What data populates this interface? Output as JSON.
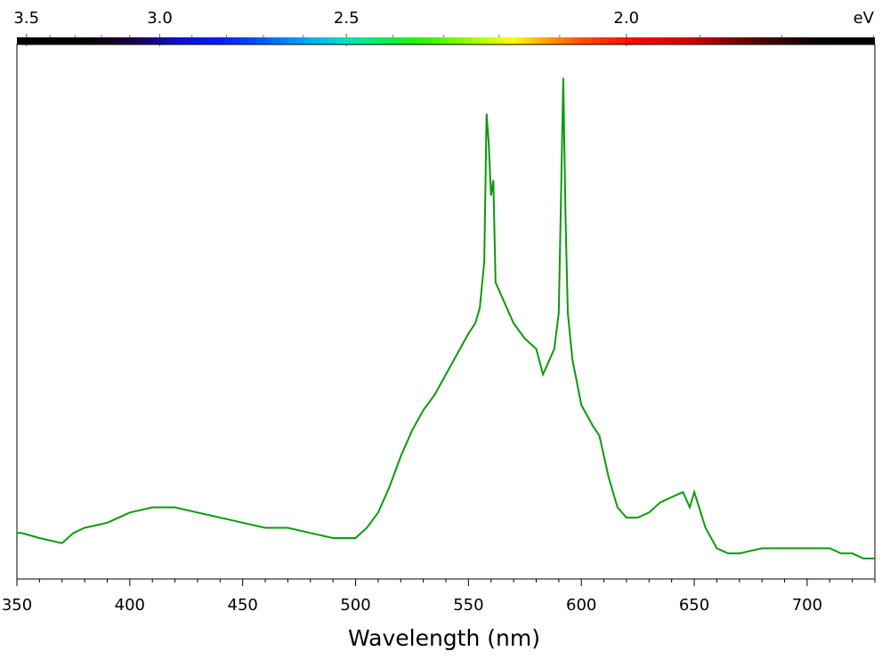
{
  "chart_data": {
    "type": "line",
    "xlabel": "Wavelength (nm)",
    "ylabel": "",
    "xlim": [
      350,
      730
    ],
    "ylim": [
      0,
      1
    ],
    "grid": false,
    "x_ticks": [
      350,
      400,
      450,
      500,
      550,
      600,
      650,
      700
    ],
    "top_axis": {
      "unit_label": "eV",
      "ticks": [
        "3.5",
        "3.0",
        "2.5",
        "2.0"
      ],
      "tick_values_ev": [
        3.5,
        3.0,
        2.5,
        2.0
      ],
      "colorbar": "visible spectrum"
    },
    "series": [
      {
        "name": "",
        "color": "#0a9b0a",
        "x": [
          350,
          352,
          360,
          370,
          375,
          380,
          390,
          400,
          410,
          420,
          430,
          440,
          450,
          460,
          470,
          480,
          490,
          495,
          500,
          505,
          510,
          515,
          520,
          525,
          530,
          535,
          540,
          545,
          550,
          553,
          555,
          557,
          558,
          559,
          560,
          561,
          562,
          565,
          570,
          575,
          580,
          583,
          585,
          588,
          590,
          591,
          592,
          593,
          594,
          596,
          600,
          605,
          608,
          612,
          616,
          620,
          625,
          630,
          635,
          640,
          645,
          648,
          650,
          655,
          660,
          665,
          670,
          680,
          690,
          700,
          710,
          715,
          720,
          725,
          730
        ],
        "y": [
          0.09,
          0.09,
          0.08,
          0.07,
          0.09,
          0.1,
          0.11,
          0.13,
          0.14,
          0.14,
          0.13,
          0.12,
          0.11,
          0.1,
          0.1,
          0.09,
          0.08,
          0.08,
          0.08,
          0.1,
          0.13,
          0.18,
          0.24,
          0.29,
          0.33,
          0.36,
          0.4,
          0.44,
          0.48,
          0.5,
          0.53,
          0.62,
          0.91,
          0.85,
          0.75,
          0.78,
          0.58,
          0.55,
          0.5,
          0.47,
          0.45,
          0.4,
          0.42,
          0.45,
          0.52,
          0.75,
          0.98,
          0.7,
          0.52,
          0.43,
          0.34,
          0.3,
          0.28,
          0.2,
          0.14,
          0.12,
          0.12,
          0.13,
          0.15,
          0.16,
          0.17,
          0.14,
          0.17,
          0.1,
          0.06,
          0.05,
          0.05,
          0.06,
          0.06,
          0.06,
          0.06,
          0.05,
          0.05,
          0.04,
          0.04
        ]
      }
    ]
  }
}
